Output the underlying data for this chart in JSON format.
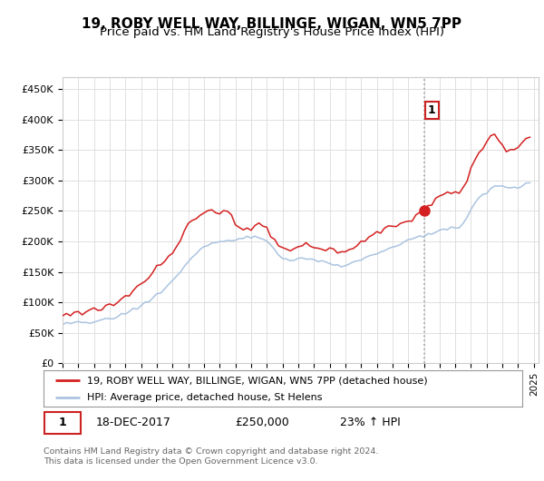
{
  "title": "19, ROBY WELL WAY, BILLINGE, WIGAN, WN5 7PP",
  "subtitle": "Price paid vs. HM Land Registry's House Price Index (HPI)",
  "ylabel_ticks": [
    "£0",
    "£50K",
    "£100K",
    "£150K",
    "£200K",
    "£250K",
    "£300K",
    "£350K",
    "£400K",
    "£450K"
  ],
  "ytick_values": [
    0,
    50000,
    100000,
    150000,
    200000,
    250000,
    300000,
    350000,
    400000,
    450000
  ],
  "ylim": [
    0,
    470000
  ],
  "xlim_start": 1995.0,
  "xlim_end": 2025.3,
  "hpi_color": "#aac4e0",
  "price_color": "#d42020",
  "vline_color": "#aaaaaa",
  "vline_x": 2018.0,
  "sale_date": "18-DEC-2017",
  "sale_price": 250000,
  "sale_label": "£250,000",
  "sale_hpi_diff": "23% ↑ HPI",
  "legend_label_red": "19, ROBY WELL WAY, BILLINGE, WIGAN, WN5 7PP (detached house)",
  "legend_label_blue": "HPI: Average price, detached house, St Helens",
  "annotation_label": "1",
  "footnote1": "Contains HM Land Registry data © Crown copyright and database right 2024.",
  "footnote2": "This data is licensed under the Open Government Licence v3.0.",
  "background_color": "#ffffff",
  "plot_bg_color": "#ffffff",
  "grid_color": "#e0e0e0",
  "title_fontsize": 11,
  "subtitle_fontsize": 9.5,
  "hpi_data": [
    [
      1995.0,
      65000
    ],
    [
      1995.25,
      65500
    ],
    [
      1995.5,
      65200
    ],
    [
      1995.75,
      65800
    ],
    [
      1996.0,
      66000
    ],
    [
      1996.25,
      66500
    ],
    [
      1996.5,
      67000
    ],
    [
      1996.75,
      67500
    ],
    [
      1997.0,
      68500
    ],
    [
      1997.25,
      69500
    ],
    [
      1997.5,
      70500
    ],
    [
      1997.75,
      72000
    ],
    [
      1998.0,
      73500
    ],
    [
      1998.25,
      75000
    ],
    [
      1998.5,
      77000
    ],
    [
      1998.75,
      79500
    ],
    [
      1999.0,
      82000
    ],
    [
      1999.25,
      85000
    ],
    [
      1999.5,
      88000
    ],
    [
      1999.75,
      91000
    ],
    [
      2000.0,
      94000
    ],
    [
      2000.25,
      98000
    ],
    [
      2000.5,
      102000
    ],
    [
      2000.75,
      107000
    ],
    [
      2001.0,
      112000
    ],
    [
      2001.25,
      117000
    ],
    [
      2001.5,
      122000
    ],
    [
      2001.75,
      128000
    ],
    [
      2002.0,
      135000
    ],
    [
      2002.25,
      143000
    ],
    [
      2002.5,
      151000
    ],
    [
      2002.75,
      159000
    ],
    [
      2003.0,
      167000
    ],
    [
      2003.25,
      174000
    ],
    [
      2003.5,
      180000
    ],
    [
      2003.75,
      185000
    ],
    [
      2004.0,
      190000
    ],
    [
      2004.25,
      194000
    ],
    [
      2004.5,
      197000
    ],
    [
      2004.75,
      199000
    ],
    [
      2005.0,
      200000
    ],
    [
      2005.25,
      200500
    ],
    [
      2005.5,
      201000
    ],
    [
      2005.75,
      201500
    ],
    [
      2006.0,
      202000
    ],
    [
      2006.25,
      203500
    ],
    [
      2006.5,
      205000
    ],
    [
      2006.75,
      206500
    ],
    [
      2007.0,
      207000
    ],
    [
      2007.25,
      207500
    ],
    [
      2007.5,
      206000
    ],
    [
      2007.75,
      204000
    ],
    [
      2008.0,
      200000
    ],
    [
      2008.25,
      194000
    ],
    [
      2008.5,
      187000
    ],
    [
      2008.75,
      180000
    ],
    [
      2009.0,
      174000
    ],
    [
      2009.25,
      170000
    ],
    [
      2009.5,
      168000
    ],
    [
      2009.75,
      168000
    ],
    [
      2010.0,
      170000
    ],
    [
      2010.25,
      172000
    ],
    [
      2010.5,
      173000
    ],
    [
      2010.75,
      172000
    ],
    [
      2011.0,
      170000
    ],
    [
      2011.25,
      168000
    ],
    [
      2011.5,
      166000
    ],
    [
      2011.75,
      164000
    ],
    [
      2012.0,
      162000
    ],
    [
      2012.25,
      161000
    ],
    [
      2012.5,
      160000
    ],
    [
      2012.75,
      160000
    ],
    [
      2013.0,
      161000
    ],
    [
      2013.25,
      163000
    ],
    [
      2013.5,
      165000
    ],
    [
      2013.75,
      168000
    ],
    [
      2014.0,
      171000
    ],
    [
      2014.25,
      174000
    ],
    [
      2014.5,
      177000
    ],
    [
      2014.75,
      179000
    ],
    [
      2015.0,
      181000
    ],
    [
      2015.25,
      183000
    ],
    [
      2015.5,
      185000
    ],
    [
      2015.75,
      187000
    ],
    [
      2016.0,
      189000
    ],
    [
      2016.25,
      192000
    ],
    [
      2016.5,
      195000
    ],
    [
      2016.75,
      198000
    ],
    [
      2017.0,
      201000
    ],
    [
      2017.25,
      203000
    ],
    [
      2017.5,
      205000
    ],
    [
      2017.75,
      207000
    ],
    [
      2018.0,
      209000
    ],
    [
      2018.25,
      211000
    ],
    [
      2018.5,
      213000
    ],
    [
      2018.75,
      215000
    ],
    [
      2019.0,
      217000
    ],
    [
      2019.25,
      219000
    ],
    [
      2019.5,
      221000
    ],
    [
      2019.75,
      223000
    ],
    [
      2020.0,
      224000
    ],
    [
      2020.25,
      223000
    ],
    [
      2020.5,
      228000
    ],
    [
      2020.75,
      240000
    ],
    [
      2021.0,
      252000
    ],
    [
      2021.25,
      262000
    ],
    [
      2021.5,
      270000
    ],
    [
      2021.75,
      276000
    ],
    [
      2022.0,
      281000
    ],
    [
      2022.25,
      287000
    ],
    [
      2022.5,
      291000
    ],
    [
      2022.75,
      293000
    ],
    [
      2023.0,
      291000
    ],
    [
      2023.25,
      288000
    ],
    [
      2023.5,
      286000
    ],
    [
      2023.75,
      287000
    ],
    [
      2024.0,
      289000
    ],
    [
      2024.25,
      292000
    ],
    [
      2024.5,
      295000
    ],
    [
      2024.75,
      298000
    ]
  ],
  "price_data": [
    [
      1995.0,
      80000
    ],
    [
      1995.25,
      81000
    ],
    [
      1995.5,
      80500
    ],
    [
      1995.75,
      81500
    ],
    [
      1996.0,
      82000
    ],
    [
      1996.25,
      83000
    ],
    [
      1996.5,
      84000
    ],
    [
      1996.75,
      85500
    ],
    [
      1997.0,
      87000
    ],
    [
      1997.25,
      88500
    ],
    [
      1997.5,
      90000
    ],
    [
      1997.75,
      92000
    ],
    [
      1998.0,
      94000
    ],
    [
      1998.25,
      97000
    ],
    [
      1998.5,
      100000
    ],
    [
      1998.75,
      104000
    ],
    [
      1999.0,
      108000
    ],
    [
      1999.25,
      113000
    ],
    [
      1999.5,
      118000
    ],
    [
      1999.75,
      124000
    ],
    [
      2000.0,
      130000
    ],
    [
      2000.25,
      137000
    ],
    [
      2000.5,
      144000
    ],
    [
      2000.75,
      151000
    ],
    [
      2001.0,
      158000
    ],
    [
      2001.25,
      165000
    ],
    [
      2001.5,
      171000
    ],
    [
      2001.75,
      177000
    ],
    [
      2002.0,
      184000
    ],
    [
      2002.25,
      194000
    ],
    [
      2002.5,
      205000
    ],
    [
      2002.75,
      217000
    ],
    [
      2003.0,
      228000
    ],
    [
      2003.25,
      235000
    ],
    [
      2003.5,
      240000
    ],
    [
      2003.75,
      244000
    ],
    [
      2004.0,
      246000
    ],
    [
      2004.25,
      247000
    ],
    [
      2004.5,
      248000
    ],
    [
      2004.75,
      249000
    ],
    [
      2005.0,
      249000
    ],
    [
      2005.25,
      248000
    ],
    [
      2005.5,
      246000
    ],
    [
      2005.75,
      244000
    ],
    [
      2006.0,
      225000
    ],
    [
      2006.25,
      220000
    ],
    [
      2006.5,
      218000
    ],
    [
      2006.75,
      219000
    ],
    [
      2007.0,
      222000
    ],
    [
      2007.25,
      228000
    ],
    [
      2007.5,
      232000
    ],
    [
      2007.75,
      228000
    ],
    [
      2008.0,
      220000
    ],
    [
      2008.25,
      211000
    ],
    [
      2008.5,
      202000
    ],
    [
      2008.75,
      196000
    ],
    [
      2009.0,
      191000
    ],
    [
      2009.25,
      188000
    ],
    [
      2009.5,
      187000
    ],
    [
      2009.75,
      188000
    ],
    [
      2010.0,
      191000
    ],
    [
      2010.25,
      194000
    ],
    [
      2010.5,
      196000
    ],
    [
      2010.75,
      195000
    ],
    [
      2011.0,
      192000
    ],
    [
      2011.25,
      190000
    ],
    [
      2011.5,
      188000
    ],
    [
      2011.75,
      187000
    ],
    [
      2012.0,
      186000
    ],
    [
      2012.25,
      185000
    ],
    [
      2012.5,
      184000
    ],
    [
      2012.75,
      184000
    ],
    [
      2013.0,
      185000
    ],
    [
      2013.25,
      187000
    ],
    [
      2013.5,
      190000
    ],
    [
      2013.75,
      193000
    ],
    [
      2014.0,
      197000
    ],
    [
      2014.25,
      201000
    ],
    [
      2014.5,
      206000
    ],
    [
      2014.75,
      210000
    ],
    [
      2015.0,
      214000
    ],
    [
      2015.25,
      217000
    ],
    [
      2015.5,
      220000
    ],
    [
      2015.75,
      222000
    ],
    [
      2016.0,
      224000
    ],
    [
      2016.25,
      226000
    ],
    [
      2016.5,
      228000
    ],
    [
      2016.75,
      230000
    ],
    [
      2017.0,
      232000
    ],
    [
      2017.25,
      236000
    ],
    [
      2017.5,
      240000
    ],
    [
      2017.75,
      244000
    ],
    [
      2018.0,
      252000
    ],
    [
      2018.25,
      258000
    ],
    [
      2018.5,
      263000
    ],
    [
      2018.75,
      267000
    ],
    [
      2019.0,
      272000
    ],
    [
      2019.25,
      276000
    ],
    [
      2019.5,
      279000
    ],
    [
      2019.75,
      281000
    ],
    [
      2020.0,
      283000
    ],
    [
      2020.25,
      281000
    ],
    [
      2020.5,
      288000
    ],
    [
      2020.75,
      302000
    ],
    [
      2021.0,
      318000
    ],
    [
      2021.25,
      334000
    ],
    [
      2021.5,
      346000
    ],
    [
      2021.75,
      355000
    ],
    [
      2022.0,
      362000
    ],
    [
      2022.25,
      371000
    ],
    [
      2022.5,
      375000
    ],
    [
      2022.75,
      368000
    ],
    [
      2023.0,
      356000
    ],
    [
      2023.25,
      350000
    ],
    [
      2023.5,
      348000
    ],
    [
      2023.75,
      350000
    ],
    [
      2024.0,
      356000
    ],
    [
      2024.25,
      362000
    ],
    [
      2024.5,
      368000
    ],
    [
      2024.75,
      373000
    ]
  ]
}
